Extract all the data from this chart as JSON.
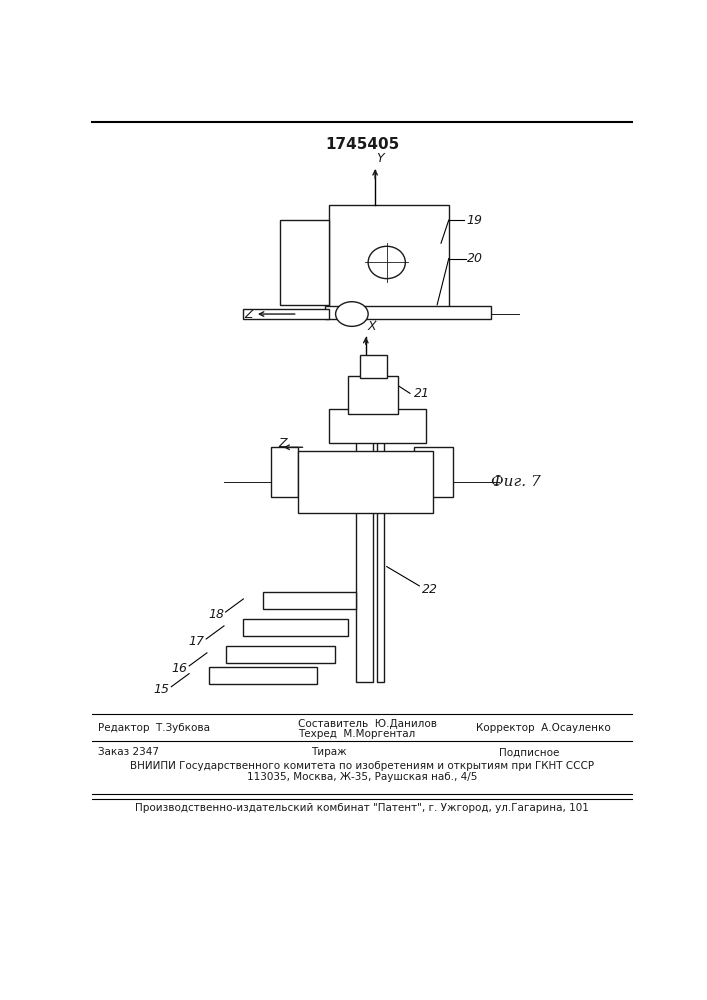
{
  "patent_number": "1745405",
  "fig_label": "Фиг. 7",
  "background_color": "#ffffff",
  "line_color": "#1a1a1a",
  "fill_color": "#ffffff",
  "footer_col1": "Редактор  Т.Зубкова",
  "footer_col2a": "Составитель  Ю.Данилов",
  "footer_col2b": "Техред  М.Моргентал",
  "footer_col3": "Корректор  А.Осауленко",
  "footer_order": "Заказ 2347",
  "footer_print": "Тираж",
  "footer_sign": "Подписное",
  "footer_vniipи": "ВНИИПИ Государственного комитета по изобретениям и открытиям при ГКНТ СССР",
  "footer_addr": "113035, Москва, Ж-35, Раушская наб., 4/5",
  "footer_patent": "Производственно-издательский комбинат \"Патент\", г. Ужгород, ул.Гагарина, 101"
}
